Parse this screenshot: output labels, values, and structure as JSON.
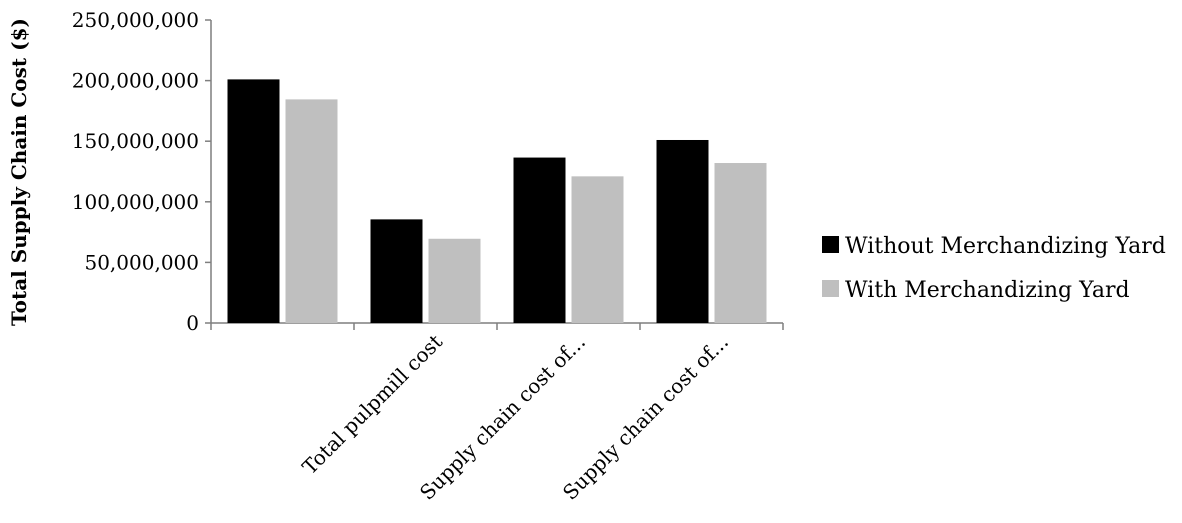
{
  "chart_data": {
    "type": "bar",
    "title": "",
    "xlabel": "",
    "ylabel": "Total Supply Chain Cost ($)",
    "ylim": [
      0,
      250000000
    ],
    "yticks": [
      0,
      50000000,
      100000000,
      150000000,
      200000000,
      250000000
    ],
    "ytick_labels": [
      "0",
      "50,000,000",
      "100,000,000",
      "150,000,000",
      "200,000,000",
      "250,000,000"
    ],
    "categories": [
      "",
      "Total pulpmill cost",
      "Supply chain cost of...",
      "Supply chain cost of..."
    ],
    "series": [
      {
        "name": "Without Merchandizing Yard",
        "color": "#000000",
        "values": [
          201000000,
          85500000,
          136500000,
          151000000
        ]
      },
      {
        "name": "With Merchandizing Yard",
        "color": "#bfbfbf",
        "values": [
          184500000,
          69500000,
          121000000,
          132000000
        ]
      }
    ],
    "grid": false,
    "legend_position": "right"
  }
}
